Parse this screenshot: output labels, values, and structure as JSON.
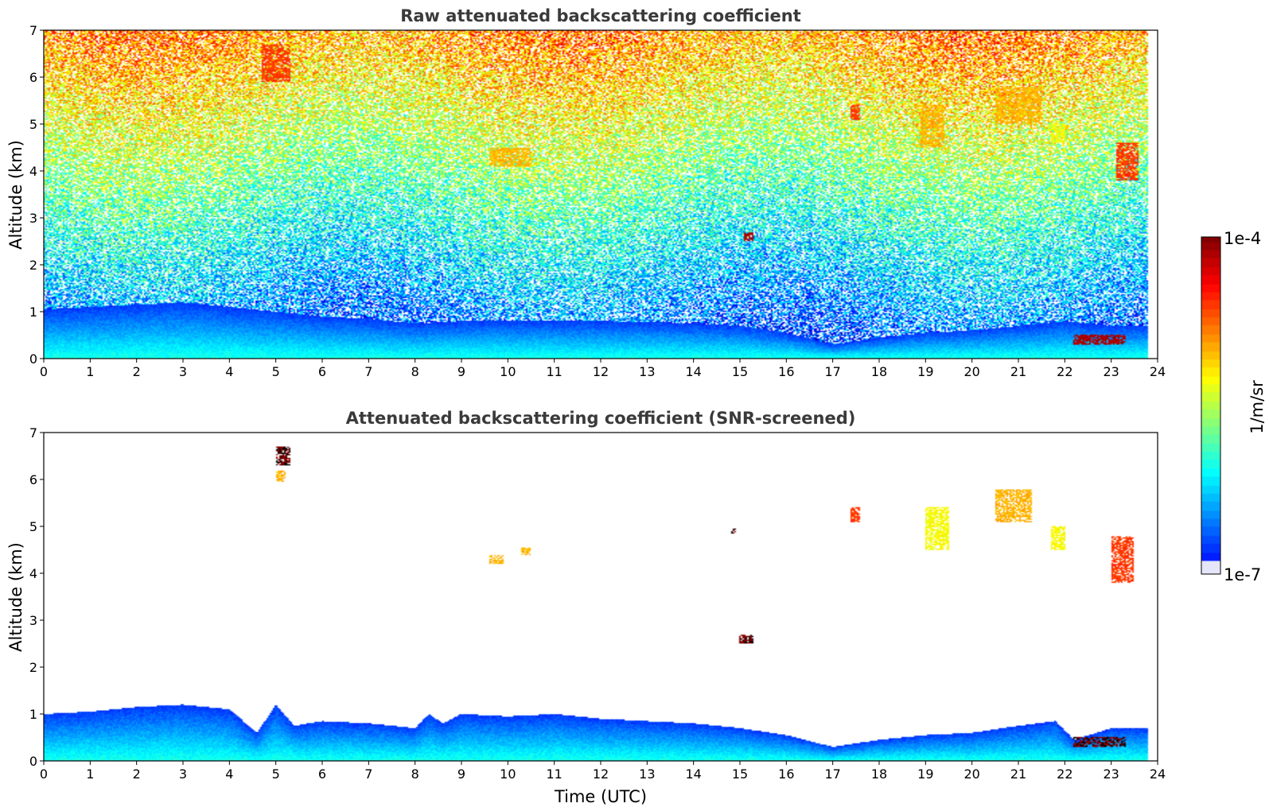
{
  "chart_data": [
    {
      "type": "heatmap",
      "title": "Raw attenuated backscattering coefficient",
      "xlabel": "",
      "ylabel": "Altitude (km)",
      "xlim": [
        0,
        24
      ],
      "ylim": [
        0,
        7
      ],
      "x_ticks": [
        "0",
        "1",
        "2",
        "3",
        "4",
        "5",
        "6",
        "7",
        "8",
        "9",
        "10",
        "11",
        "12",
        "13",
        "14",
        "15",
        "16",
        "17",
        "18",
        "19",
        "20",
        "21",
        "22",
        "23",
        "24"
      ],
      "y_ticks": [
        "0",
        "1",
        "2",
        "3",
        "4",
        "5",
        "6",
        "7"
      ],
      "data_extent_hours": [
        0,
        23.8
      ],
      "noisy_background": true,
      "boundary_layer_top_km": [
        [
          0,
          1.05
        ],
        [
          2,
          1.15
        ],
        [
          3,
          1.2
        ],
        [
          4,
          1.1
        ],
        [
          5,
          1.0
        ],
        [
          6,
          0.9
        ],
        [
          7,
          0.85
        ],
        [
          8,
          0.75
        ],
        [
          9,
          0.8
        ],
        [
          10,
          0.82
        ],
        [
          11,
          0.8
        ],
        [
          12,
          0.8
        ],
        [
          13,
          0.78
        ],
        [
          14,
          0.75
        ],
        [
          15,
          0.7
        ],
        [
          16,
          0.55
        ],
        [
          17,
          0.3
        ],
        [
          18,
          0.45
        ],
        [
          19,
          0.55
        ],
        [
          20,
          0.6
        ],
        [
          21,
          0.7
        ],
        [
          22,
          0.8
        ],
        [
          23,
          0.7
        ],
        [
          23.8,
          0.7
        ]
      ],
      "features": [
        {
          "x": [
            4.7,
            5.3
          ],
          "y": [
            5.9,
            6.7
          ],
          "level": "high"
        },
        {
          "x": [
            9.6,
            10.5
          ],
          "y": [
            4.1,
            4.5
          ],
          "level": "medium"
        },
        {
          "x": [
            15.1,
            15.3
          ],
          "y": [
            2.5,
            2.7
          ],
          "level": "max"
        },
        {
          "x": [
            17.4,
            17.6
          ],
          "y": [
            5.1,
            5.4
          ],
          "level": "high"
        },
        {
          "x": [
            18.9,
            19.4
          ],
          "y": [
            4.5,
            5.4
          ],
          "level": "medium"
        },
        {
          "x": [
            20.5,
            21.5
          ],
          "y": [
            5.0,
            5.8
          ],
          "level": "medium"
        },
        {
          "x": [
            21.7,
            22.0
          ],
          "y": [
            4.6,
            5.0
          ],
          "level": "low"
        },
        {
          "x": [
            23.1,
            23.6
          ],
          "y": [
            3.8,
            4.6
          ],
          "level": "high"
        },
        {
          "x": [
            22.2,
            23.3
          ],
          "y": [
            0.3,
            0.5
          ],
          "level": "max"
        }
      ]
    },
    {
      "type": "heatmap",
      "title": "Attenuated backscattering coefficient (SNR-screened)",
      "xlabel": "Time (UTC)",
      "ylabel": "Altitude (km)",
      "xlim": [
        0,
        24
      ],
      "ylim": [
        0,
        7
      ],
      "x_ticks": [
        "0",
        "1",
        "2",
        "3",
        "4",
        "5",
        "6",
        "7",
        "8",
        "9",
        "10",
        "11",
        "12",
        "13",
        "14",
        "15",
        "16",
        "17",
        "18",
        "19",
        "20",
        "21",
        "22",
        "23",
        "24"
      ],
      "y_ticks": [
        "0",
        "1",
        "2",
        "3",
        "4",
        "5",
        "6",
        "7"
      ],
      "noisy_background": false,
      "boundary_layer_top_km": [
        [
          0,
          1.0
        ],
        [
          1,
          1.05
        ],
        [
          2,
          1.15
        ],
        [
          3,
          1.2
        ],
        [
          4,
          1.1
        ],
        [
          4.6,
          0.6
        ],
        [
          5.0,
          1.2
        ],
        [
          5.4,
          0.75
        ],
        [
          6,
          0.85
        ],
        [
          7,
          0.8
        ],
        [
          8,
          0.7
        ],
        [
          8.3,
          1.0
        ],
        [
          8.6,
          0.8
        ],
        [
          9,
          1.0
        ],
        [
          10,
          0.95
        ],
        [
          11,
          1.0
        ],
        [
          12,
          0.9
        ],
        [
          13,
          0.85
        ],
        [
          14,
          0.8
        ],
        [
          15,
          0.7
        ],
        [
          16,
          0.55
        ],
        [
          17,
          0.3
        ],
        [
          18,
          0.45
        ],
        [
          19,
          0.55
        ],
        [
          20,
          0.6
        ],
        [
          21,
          0.75
        ],
        [
          21.8,
          0.85
        ],
        [
          22.2,
          0.45
        ],
        [
          23,
          0.7
        ],
        [
          23.8,
          0.7
        ]
      ],
      "features": [
        {
          "x": [
            5.0,
            5.3
          ],
          "y": [
            6.3,
            6.7
          ],
          "level": "saturated"
        },
        {
          "x": [
            5.0,
            5.2
          ],
          "y": [
            5.95,
            6.2
          ],
          "level": "medium"
        },
        {
          "x": [
            9.6,
            9.9
          ],
          "y": [
            4.2,
            4.4
          ],
          "level": "medium"
        },
        {
          "x": [
            10.3,
            10.5
          ],
          "y": [
            4.4,
            4.55
          ],
          "level": "medium"
        },
        {
          "x": [
            14.8,
            14.9
          ],
          "y": [
            4.85,
            4.95
          ],
          "level": "saturated"
        },
        {
          "x": [
            15.0,
            15.3
          ],
          "y": [
            2.5,
            2.7
          ],
          "level": "saturated"
        },
        {
          "x": [
            17.4,
            17.6
          ],
          "y": [
            5.1,
            5.4
          ],
          "level": "high"
        },
        {
          "x": [
            19.0,
            19.5
          ],
          "y": [
            4.5,
            5.4
          ],
          "level": "low"
        },
        {
          "x": [
            20.5,
            21.3
          ],
          "y": [
            5.1,
            5.8
          ],
          "level": "medium"
        },
        {
          "x": [
            21.7,
            22.0
          ],
          "y": [
            4.5,
            5.0
          ],
          "level": "low"
        },
        {
          "x": [
            23.0,
            23.5
          ],
          "y": [
            3.8,
            4.8
          ],
          "level": "high"
        },
        {
          "x": [
            22.2,
            23.3
          ],
          "y": [
            0.3,
            0.5
          ],
          "level": "saturated"
        }
      ]
    }
  ],
  "colorbar": {
    "max_label": "1e-4",
    "min_label": "1e-7",
    "unit_label": "1/m/sr",
    "colormap": "jet"
  }
}
